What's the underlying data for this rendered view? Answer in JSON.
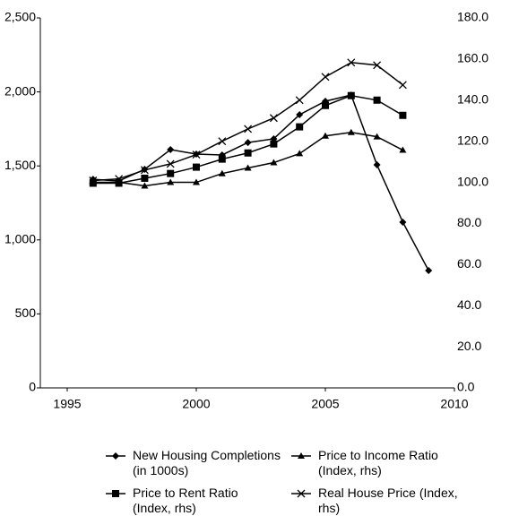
{
  "chart_data": {
    "type": "line",
    "x": [
      1996,
      1997,
      1998,
      1999,
      2000,
      2001,
      2002,
      2003,
      2004,
      2005,
      2006,
      2007,
      2008,
      2009
    ],
    "xlim": [
      1995,
      2010
    ],
    "xticks": [
      1995,
      2000,
      2005,
      2010
    ],
    "ylim": [
      0,
      2500
    ],
    "yticks": [
      0,
      500,
      {
        "value": 1000,
        "label": "1,000"
      },
      {
        "value": 1500,
        "label": "1,500"
      },
      {
        "value": 2000,
        "label": "2,000"
      },
      {
        "value": 2500,
        "label": "2,500"
      }
    ],
    "y2lim": [
      0,
      180
    ],
    "y2ticks": [
      {
        "value": 0,
        "label": "0.0"
      },
      {
        "value": 20,
        "label": "20.0"
      },
      {
        "value": 40,
        "label": "40.0"
      },
      {
        "value": 60,
        "label": "60.0"
      },
      {
        "value": 80,
        "label": "80.0"
      },
      {
        "value": 100,
        "label": "100.0"
      },
      {
        "value": 120,
        "label": "120.0"
      },
      {
        "value": 140,
        "label": "140.0"
      },
      {
        "value": 160,
        "label": "160.0"
      },
      {
        "value": 180,
        "label": "180.0"
      }
    ],
    "grid": false,
    "series": [
      {
        "name": "New Housing Completions (in 1000s)",
        "color": "#000000",
        "marker": "diamond",
        "values": [
          1410,
          1398,
          1477,
          1610,
          1580,
          1574,
          1658,
          1683,
          1846,
          1937,
          1979,
          1507,
          1120,
          793
        ]
      },
      {
        "name": "Price to Income Ratio (Index, rhs)",
        "color": "#000000",
        "marker": "triangle",
        "axis": "y2",
        "values": [
          100,
          100,
          98.3,
          100,
          100,
          104.3,
          107,
          109.6,
          114,
          122.6,
          124.3,
          122.2,
          115.7,
          null
        ]
      },
      {
        "name": "Price to Rent Ratio (Index, rhs)",
        "color": "#000000",
        "marker": "square",
        "axis": "y2",
        "values": [
          99.6,
          99.6,
          102,
          104.3,
          107.4,
          111.3,
          114.3,
          118.7,
          127,
          137.4,
          142.2,
          140,
          132.6,
          null
        ]
      },
      {
        "name": "Real House Price (Index, rhs)",
        "color": "#000000",
        "marker": "x",
        "axis": "y2",
        "values": [
          100.9,
          101.7,
          106,
          109,
          113.5,
          120,
          126,
          131.3,
          140,
          151.3,
          158.3,
          157,
          147.4,
          null
        ]
      }
    ]
  }
}
